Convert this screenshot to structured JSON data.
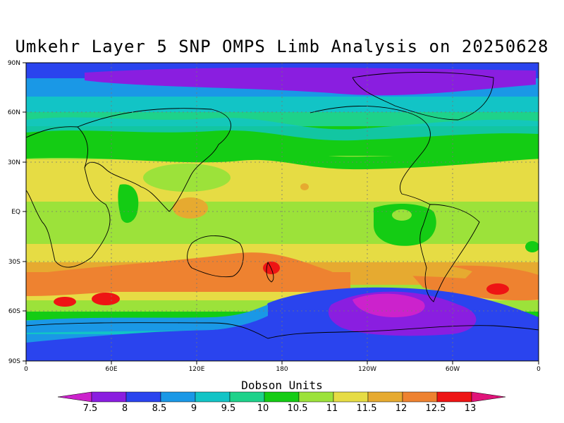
{
  "title": "Umkehr Layer 5 SNP OMPS Limb Analysis on 20250628",
  "colorbar": {
    "title": "Dobson Units",
    "labels": [
      "7.5",
      "8",
      "8.5",
      "9",
      "9.5",
      "10",
      "10.5",
      "11",
      "11.5",
      "12",
      "12.5",
      "13"
    ],
    "colors": [
      "#cc22cc",
      "#8a1ee0",
      "#2a44ee",
      "#1a98e6",
      "#12c4c6",
      "#1ed28a",
      "#14cc14",
      "#9ce23a",
      "#e6dc44",
      "#e6aa30",
      "#ee8230",
      "#ee1414",
      "#e0147a"
    ]
  },
  "axes": {
    "x_ticks": [
      "0",
      "60E",
      "120E",
      "180",
      "120W",
      "60W",
      "0"
    ],
    "y_ticks": [
      "90N",
      "60N",
      "30N",
      "EQ",
      "30S",
      "60S",
      "90S"
    ]
  }
}
